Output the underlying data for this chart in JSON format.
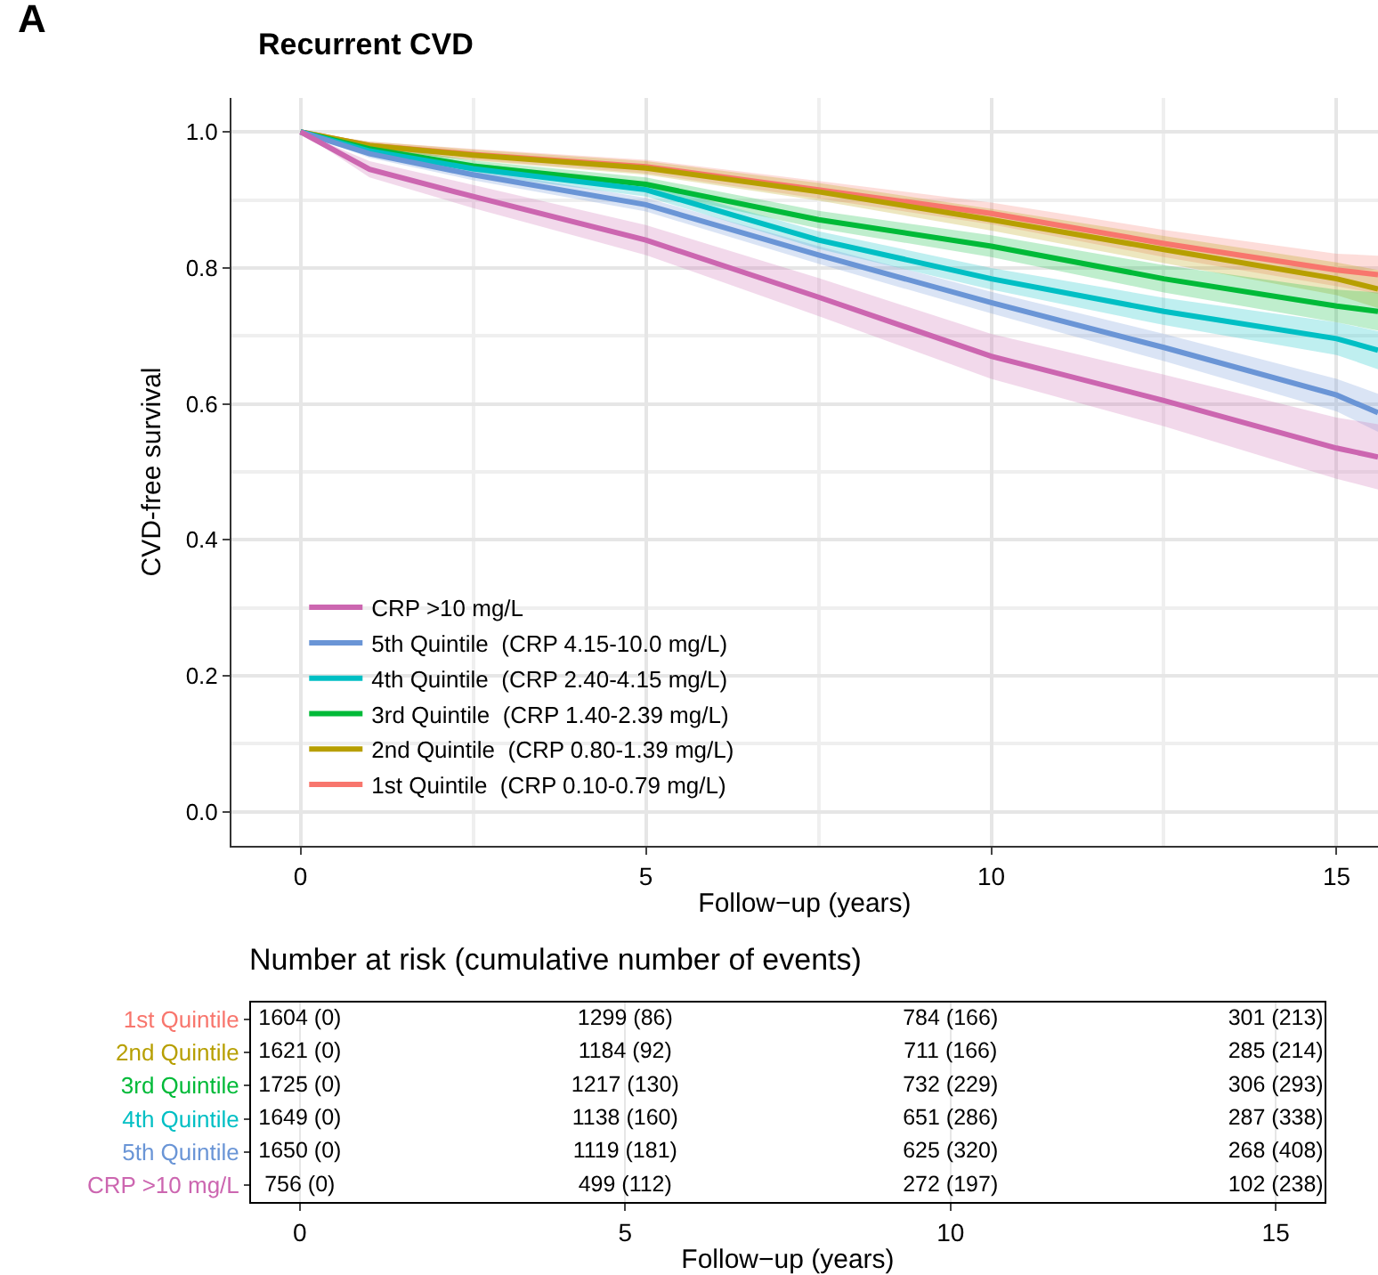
{
  "chart_data": [
    {
      "type": "line",
      "title": "Recurrent CVD",
      "xlabel": "Follow−up (years)",
      "ylabel": "CVD-free survival",
      "annotations": [
        "A"
      ],
      "x": [
        0,
        1,
        2.5,
        5,
        7.5,
        10,
        12.5,
        15,
        15.6
      ],
      "xlim": [
        -1,
        15.6
      ],
      "xticks": [
        0,
        5,
        10,
        15
      ],
      "ylim": [
        -0.05,
        1.05
      ],
      "yticks": [
        {
          "value": 0,
          "label": "0.0"
        },
        0.2,
        0.4,
        0.6,
        0.8,
        {
          "value": 1,
          "label": "1.0"
        }
      ],
      "grid": true,
      "legend": "bottom left",
      "marker": "none",
      "line_style": "solid",
      "series": [
        {
          "name": "1st Quintile  (CRP 0.10-0.79 mg/L)",
          "color": "#f8766d",
          "values": [
            1,
            0.98,
            0.967,
            0.949,
            0.915,
            0.88,
            0.836,
            0.797,
            0.79
          ],
          "lower": [
            1,
            0.974,
            0.959,
            0.939,
            0.902,
            0.864,
            0.816,
            0.773,
            0.762
          ],
          "upper": [
            1,
            0.986,
            0.975,
            0.959,
            0.928,
            0.896,
            0.856,
            0.821,
            0.818
          ]
        },
        {
          "name": "2nd Quintile  (CRP 0.80-1.39 mg/L)",
          "color": "#b79f00",
          "values": [
            1,
            0.98,
            0.966,
            0.947,
            0.912,
            0.871,
            0.827,
            0.784,
            0.769
          ],
          "lower": [
            1,
            0.974,
            0.958,
            0.937,
            0.899,
            0.855,
            0.807,
            0.76,
            0.741
          ],
          "upper": [
            1,
            0.986,
            0.974,
            0.957,
            0.925,
            0.887,
            0.847,
            0.808,
            0.797
          ]
        },
        {
          "name": "3rd Quintile  (CRP 1.40-2.39 mg/L)",
          "color": "#00ba38",
          "values": [
            1,
            0.975,
            0.95,
            0.923,
            0.871,
            0.832,
            0.784,
            0.744,
            0.736
          ],
          "lower": [
            1,
            0.969,
            0.942,
            0.913,
            0.858,
            0.816,
            0.764,
            0.72,
            0.708
          ],
          "upper": [
            1,
            0.981,
            0.958,
            0.933,
            0.884,
            0.848,
            0.804,
            0.768,
            0.764
          ]
        },
        {
          "name": "4th Quintile  (CRP 2.40-4.15 mg/L)",
          "color": "#00bfc4",
          "values": [
            1,
            0.972,
            0.946,
            0.915,
            0.841,
            0.784,
            0.736,
            0.696,
            0.679
          ],
          "lower": [
            1,
            0.966,
            0.938,
            0.905,
            0.828,
            0.768,
            0.716,
            0.672,
            0.651
          ],
          "upper": [
            1,
            0.978,
            0.954,
            0.925,
            0.854,
            0.8,
            0.756,
            0.72,
            0.707
          ]
        },
        {
          "name": "5th Quintile  (CRP 4.15-10.0 mg/L)",
          "color": "#6a95d6",
          "values": [
            1,
            0.968,
            0.937,
            0.893,
            0.819,
            0.749,
            0.683,
            0.613,
            0.587
          ],
          "lower": [
            1,
            0.962,
            0.929,
            0.883,
            0.806,
            0.733,
            0.663,
            0.589,
            0.559
          ],
          "upper": [
            1,
            0.974,
            0.945,
            0.903,
            0.832,
            0.765,
            0.703,
            0.637,
            0.615
          ]
        },
        {
          "name": "CRP >10 mg/L",
          "color": "#cc66b0",
          "values": [
            1,
            0.945,
            0.905,
            0.841,
            0.757,
            0.67,
            0.605,
            0.535,
            0.522
          ],
          "lower": [
            1,
            0.933,
            0.888,
            0.819,
            0.729,
            0.637,
            0.567,
            0.49,
            0.474
          ],
          "upper": [
            1,
            0.957,
            0.922,
            0.863,
            0.785,
            0.703,
            0.643,
            0.58,
            0.57
          ]
        }
      ]
    },
    {
      "type": "heatmap",
      "title": "Number at risk (cumulative number of events)",
      "xlabel": "Follow−up (years)",
      "x": [
        0,
        5,
        10,
        15
      ],
      "xlim": [
        -0.75,
        15.75
      ],
      "xticks": [
        0,
        5,
        10,
        15
      ],
      "grid": "x",
      "y_categories": [
        "1st Quintile",
        "2nd Quintile",
        "3rd Quintile",
        "4th Quintile",
        "5th Quintile",
        "CRP >10 mg/L"
      ],
      "colors": [
        "#f8766d",
        "#b79f00",
        "#00ba38",
        "#00bfc4",
        "#6a95d6",
        "#cc66b0"
      ],
      "cells": [
        [
          null,
          null,
          null,
          null
        ],
        [
          null,
          null,
          null,
          null
        ],
        [
          null,
          null,
          null,
          null
        ],
        [
          null,
          null,
          null,
          null
        ],
        [
          null,
          null,
          null,
          null
        ],
        [
          null,
          null,
          null,
          null
        ]
      ],
      "cell_labels": [
        [
          "1604 (0)",
          "1299 (86)",
          "784 (166)",
          "301 (213)"
        ],
        [
          "1621 (0)",
          "1184 (92)",
          "711 (166)",
          "285 (214)"
        ],
        [
          "1725 (0)",
          "1217 (130)",
          "732 (229)",
          "306 (293)"
        ],
        [
          "1649 (0)",
          "1138 (160)",
          "651 (286)",
          "287 (338)"
        ],
        [
          "1650 (0)",
          "1119 (181)",
          "625 (320)",
          "268 (408)"
        ],
        [
          "756 (0)",
          "499 (112)",
          "272 (197)",
          "102 (238)"
        ]
      ]
    }
  ]
}
